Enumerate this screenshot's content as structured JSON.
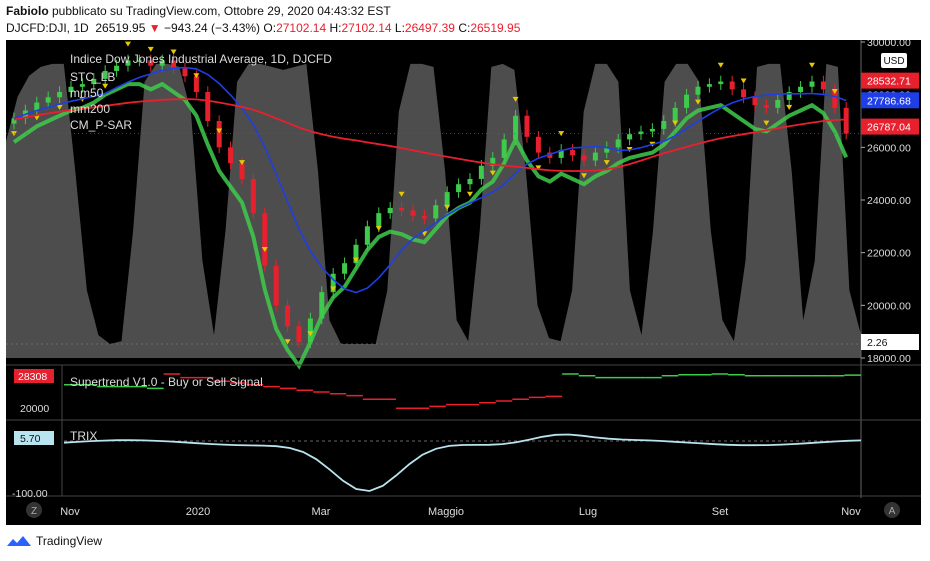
{
  "header": {
    "line1_user": "Fabiolo",
    "line1_rest": " pubblicato su TradingView.com, Ottobre 29, 2020 04:43:32 EST",
    "symbol": "DJCFD:DJI, 1D",
    "last": "26519.95",
    "change_arrow": "▼",
    "change": "−943.24 (−3.43%)",
    "o_label": "O:",
    "o": "27102.14",
    "h_label": "H:",
    "h": "27102.14",
    "l_label": "L:",
    "l": "26497.39",
    "c_label": "C:",
    "c": "26519.95"
  },
  "legend": {
    "title": "Indice Dow Jones Industrial Average, 1D, DJCFD",
    "items": [
      "STC_LB",
      "mm50",
      "mm200",
      "CM_P-SAR"
    ]
  },
  "currency": "USD",
  "colors": {
    "bg": "#000000",
    "stc_fill": "#5a5a5a",
    "up": "#3ecb4b",
    "down": "#e8202e",
    "mm50": "#1f3ee6",
    "mm200": "#e8202e",
    "sar": "#e6c800",
    "trix": "#b8e3ef",
    "label_red": "#e8202e",
    "label_blue": "#1f3ee6"
  },
  "chart_data": {
    "type": "candlestick",
    "x_ticks": [
      "Nov",
      "2020",
      "Mar",
      "Maggio",
      "Lug",
      "Set",
      "Nov"
    ],
    "y_ticks": [
      "30000.00",
      "28000.00",
      "26000.00",
      "24000.00",
      "22000.00",
      "20000.00",
      "18000.00"
    ],
    "ylim": [
      18000,
      30000
    ],
    "price_labels": [
      {
        "value": "28532.71",
        "color": "red"
      },
      {
        "value": "27786.68",
        "color": "blue"
      },
      {
        "value": "26787.04",
        "color": "red"
      },
      {
        "value": "2.26",
        "color": "white"
      }
    ],
    "close_series": [
      27100,
      27400,
      27700,
      27900,
      28100,
      28300,
      28400,
      28600,
      28900,
      29100,
      29300,
      29300,
      29100,
      29300,
      29000,
      28700,
      28100,
      27000,
      26000,
      25400,
      24800,
      23500,
      21500,
      20000,
      19200,
      18600,
      19500,
      20500,
      21200,
      21600,
      22300,
      23000,
      23500,
      23700,
      23600,
      23400,
      23300,
      23800,
      24300,
      24600,
      24800,
      25300,
      25600,
      26300,
      27200,
      26400,
      25800,
      25600,
      25900,
      25700,
      25500,
      25800,
      26000,
      26300,
      26500,
      26600,
      26700,
      27000,
      27500,
      28000,
      28300,
      28400,
      28500,
      28200,
      27900,
      27600,
      27500,
      27800,
      28100,
      28300,
      28500,
      28200,
      27500,
      26520
    ],
    "subcharts": [
      {
        "name": "Supertrend V1.0 - Buy or Sell Signal",
        "ticks": [
          "28308",
          "20000"
        ]
      },
      {
        "name": "TRIX",
        "ticks": [
          "5.70",
          "-100.00"
        ]
      }
    ]
  },
  "footer": {
    "brand": "TradingView"
  }
}
